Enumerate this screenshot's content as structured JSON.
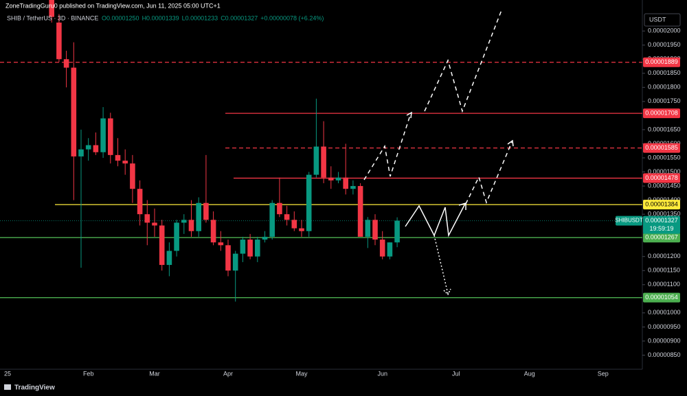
{
  "chart_data": {
    "type": "candlestick",
    "title": "ZoneTradingGuru0 published on TradingView.com, Jun 11, 2025 05:00 UTC+1",
    "subtitle": "SHIB / TetherUS · 3D · BINANCE",
    "legend_values": [
      "O0.00001250",
      "H0.00001339",
      "L0.00001233",
      "C0.00001327",
      "+0.00000078 (+6.24%)"
    ],
    "currency": "USDT",
    "brand": "TradingView",
    "up_color": "#089981",
    "down_color": "#f23645",
    "ylim": [
      8e-06,
      2.11e-05
    ],
    "yticks": [
      {
        "value": 2e-05,
        "label": "0.00002000"
      },
      {
        "value": 1.95e-05,
        "label": "0.00001950"
      },
      {
        "value": 1.9e-05,
        "label": "0.00001900"
      },
      {
        "value": 1.85e-05,
        "label": "0.00001850"
      },
      {
        "value": 1.8e-05,
        "label": "0.00001800"
      },
      {
        "value": 1.75e-05,
        "label": "0.00001750"
      },
      {
        "value": 1.65e-05,
        "label": "0.00001650"
      },
      {
        "value": 1.6e-05,
        "label": "0.00001600"
      },
      {
        "value": 1.55e-05,
        "label": "0.00001550"
      },
      {
        "value": 1.5e-05,
        "label": "0.00001500"
      },
      {
        "value": 1.45e-05,
        "label": "0.00001450"
      },
      {
        "value": 1.4e-05,
        "label": "0.00001400"
      },
      {
        "value": 1.35e-05,
        "label": "0.00001350"
      },
      {
        "value": 1.2e-05,
        "label": "0.00001200"
      },
      {
        "value": 1.15e-05,
        "label": "0.00001150"
      },
      {
        "value": 1.1e-05,
        "label": "0.00001100"
      },
      {
        "value": 1e-05,
        "label": "0.00001000"
      },
      {
        "value": 9.5e-06,
        "label": "0.00000950"
      },
      {
        "value": 9e-06,
        "label": "0.00000900"
      },
      {
        "value": 8.5e-06,
        "label": "0.00000850"
      }
    ],
    "levels": [
      {
        "value": 1.889e-05,
        "label": "0.00001889",
        "color": "#f23645",
        "style": "dashed"
      },
      {
        "value": 1.708e-05,
        "label": "0.00001708",
        "color": "#f23645",
        "style": "solid"
      },
      {
        "value": 1.585e-05,
        "label": "0.00001585",
        "color": "#f23645",
        "style": "dashed"
      },
      {
        "value": 1.478e-05,
        "label": "0.00001478",
        "color": "#f23645",
        "style": "solid"
      },
      {
        "value": 1.384e-05,
        "label": "0.00001384",
        "color": "#ffeb3b",
        "style": "solid"
      },
      {
        "value": 1.267e-05,
        "label": "0.00001267",
        "color": "#4caf50",
        "style": "solid"
      },
      {
        "value": 1.054e-05,
        "label": "0.00001054",
        "color": "#4caf50",
        "style": "solid"
      }
    ],
    "last_price": {
      "symbol": "SHIBUSDT",
      "value": 1.327e-05,
      "label": "0.00001327",
      "countdown": "19:59:19",
      "color": "#089981"
    },
    "categories": [
      "25",
      null,
      null,
      null,
      null,
      null,
      null,
      null,
      null,
      null,
      null,
      "Feb",
      null,
      null,
      null,
      null,
      null,
      null,
      null,
      null,
      "Mar",
      null,
      null,
      null,
      null,
      null,
      null,
      null,
      null,
      null,
      "Apr",
      null,
      null,
      null,
      null,
      null,
      null,
      null,
      null,
      null,
      "May",
      null,
      null,
      null,
      null,
      null,
      null,
      null,
      null,
      null,
      null,
      "Jun",
      null,
      null,
      null,
      null,
      null,
      null,
      null,
      null,
      null,
      "Jul",
      null,
      null,
      null,
      null,
      null,
      null,
      null,
      null,
      null,
      "Aug",
      null,
      null,
      null,
      null,
      null,
      null,
      null,
      null,
      null,
      "Sep",
      null,
      null,
      null,
      null,
      null
    ],
    "ohlc": [
      null,
      null,
      null,
      null,
      null,
      null,
      [
        2.16e-05,
        2.18e-05,
        2.03e-05,
        2.05e-05
      ],
      [
        2.03e-05,
        2.06e-05,
        1.89e-05,
        1.9e-05
      ],
      [
        1.9e-05,
        1.93e-05,
        1.8e-05,
        1.87e-05
      ],
      [
        1.87e-05,
        1.96e-05,
        1.4e-05,
        1.555e-05
      ],
      [
        1.555e-05,
        1.65e-05,
        1.16e-05,
        1.58e-05
      ],
      [
        1.58e-05,
        1.62e-05,
        1.54e-05,
        1.595e-05
      ],
      [
        1.595e-05,
        1.64e-05,
        1.56e-05,
        1.57e-05
      ],
      [
        1.57e-05,
        1.73e-05,
        1.55e-05,
        1.69e-05
      ],
      [
        1.69e-05,
        1.71e-05,
        1.53e-05,
        1.56e-05
      ],
      [
        1.56e-05,
        1.62e-05,
        1.52e-05,
        1.54e-05
      ],
      [
        1.54e-05,
        1.58e-05,
        1.49e-05,
        1.53e-05
      ],
      [
        1.53e-05,
        1.56e-05,
        1.39e-05,
        1.44e-05
      ],
      [
        1.44e-05,
        1.47e-05,
        1.31e-05,
        1.35e-05
      ],
      [
        1.35e-05,
        1.4e-05,
        1.24e-05,
        1.32e-05
      ],
      [
        1.32e-05,
        1.37e-05,
        1.27e-05,
        1.31e-05
      ],
      [
        1.31e-05,
        1.33e-05,
        1.15e-05,
        1.17e-05
      ],
      [
        1.17e-05,
        1.25e-05,
        1.13e-05,
        1.22e-05
      ],
      [
        1.22e-05,
        1.33e-05,
        1.2e-05,
        1.32e-05
      ],
      [
        1.32e-05,
        1.35e-05,
        1.28e-05,
        1.33e-05
      ],
      [
        1.33e-05,
        1.4e-05,
        1.27e-05,
        1.29e-05
      ],
      [
        1.29e-05,
        1.41e-05,
        1.27e-05,
        1.39e-05
      ],
      [
        1.39e-05,
        1.56e-05,
        1.32e-05,
        1.33e-05
      ],
      [
        1.33e-05,
        1.36e-05,
        1.24e-05,
        1.25e-05
      ],
      [
        1.25e-05,
        1.29e-05,
        1.22e-05,
        1.24e-05
      ],
      [
        1.24e-05,
        1.26e-05,
        1.13e-05,
        1.15e-05
      ],
      [
        1.15e-05,
        1.22e-05,
        1.04e-05,
        1.21e-05
      ],
      [
        1.21e-05,
        1.27e-05,
        1.18e-05,
        1.26e-05
      ],
      [
        1.26e-05,
        1.28e-05,
        1.19e-05,
        1.2e-05
      ],
      [
        1.2e-05,
        1.27e-05,
        1.18e-05,
        1.26e-05
      ],
      [
        1.26e-05,
        1.29e-05,
        1.25e-05,
        1.27e-05
      ],
      [
        1.27e-05,
        1.4e-05,
        1.26e-05,
        1.39e-05
      ],
      [
        1.39e-05,
        1.48e-05,
        1.34e-05,
        1.35e-05
      ],
      [
        1.35e-05,
        1.38e-05,
        1.31e-05,
        1.33e-05
      ],
      [
        1.33e-05,
        1.36e-05,
        1.29e-05,
        1.3e-05
      ],
      [
        1.3e-05,
        1.33e-05,
        1.27e-05,
        1.29e-05
      ],
      [
        1.29e-05,
        1.5e-05,
        1.27e-05,
        1.49e-05
      ],
      [
        1.49e-05,
        1.76e-05,
        1.48e-05,
        1.59e-05
      ],
      [
        1.59e-05,
        1.68e-05,
        1.46e-05,
        1.48e-05
      ],
      [
        1.48e-05,
        1.52e-05,
        1.44e-05,
        1.47e-05
      ],
      [
        1.47e-05,
        1.5e-05,
        1.46e-05,
        1.48e-05
      ],
      [
        1.48e-05,
        1.6e-05,
        1.42e-05,
        1.44e-05
      ],
      [
        1.44e-05,
        1.47e-05,
        1.42e-05,
        1.45e-05
      ],
      [
        1.45e-05,
        1.46e-05,
        1.27e-05,
        1.27e-05
      ],
      [
        1.27e-05,
        1.34e-05,
        1.23e-05,
        1.33e-05
      ],
      [
        1.33e-05,
        1.35e-05,
        1.24e-05,
        1.26e-05
      ],
      [
        1.26e-05,
        1.29e-05,
        1.19e-05,
        1.2e-05
      ],
      [
        1.2e-05,
        1.25e-05,
        1.19e-05,
        1.25e-05
      ],
      [
        1.25e-05,
        1.339e-05,
        1.233e-05,
        1.327e-05
      ],
      null,
      null,
      null,
      null,
      null,
      null,
      null,
      null,
      null,
      null,
      null,
      null,
      null,
      null,
      null,
      null,
      null,
      null,
      null,
      null,
      null,
      null,
      null,
      null,
      null,
      null,
      null,
      null,
      null,
      null,
      null,
      null,
      null
    ]
  }
}
